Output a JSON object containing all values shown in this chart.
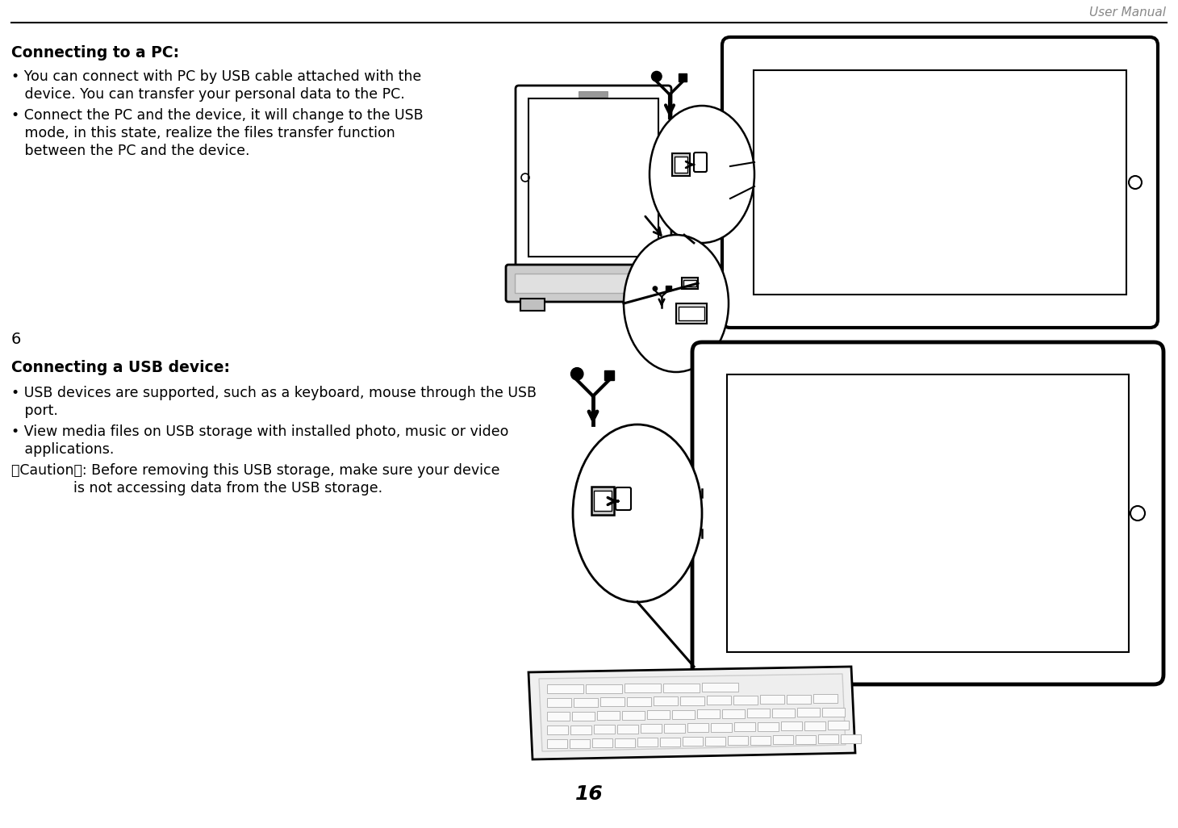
{
  "bg_color": "#ffffff",
  "header_text": "User Manual",
  "page_number": "16",
  "section1_title": "Connecting to a PC:",
  "section1_bullet1_line1": "• You can connect with PC by USB cable attached with the",
  "section1_bullet1_line2": "   device. You can transfer your personal data to the PC.",
  "section1_bullet2_line1": "• Connect the PC and the device, it will change to the USB",
  "section1_bullet2_line2": "   mode, in this state, realize the files transfer function",
  "section1_bullet2_line3": "   between the PC and the device.",
  "section2_number": "6",
  "section2_title": "Connecting a USB device:",
  "section2_bullet1_line1": "• USB devices are supported, such as a keyboard, mouse through the USB",
  "section2_bullet1_line2": "   port.",
  "section2_bullet2_line1": "• View media files on USB storage with installed photo, music or video",
  "section2_bullet2_line2": "   applications.",
  "section2_bullet3_line1": "【Caution】: Before removing this USB storage, make sure your device",
  "section2_bullet3_line2": "              is not accessing data from the USB storage.",
  "text_color": "#000000",
  "title_fontsize": 13.5,
  "body_fontsize": 12.5,
  "header_fontsize": 11,
  "page_num_fontsize": 18
}
